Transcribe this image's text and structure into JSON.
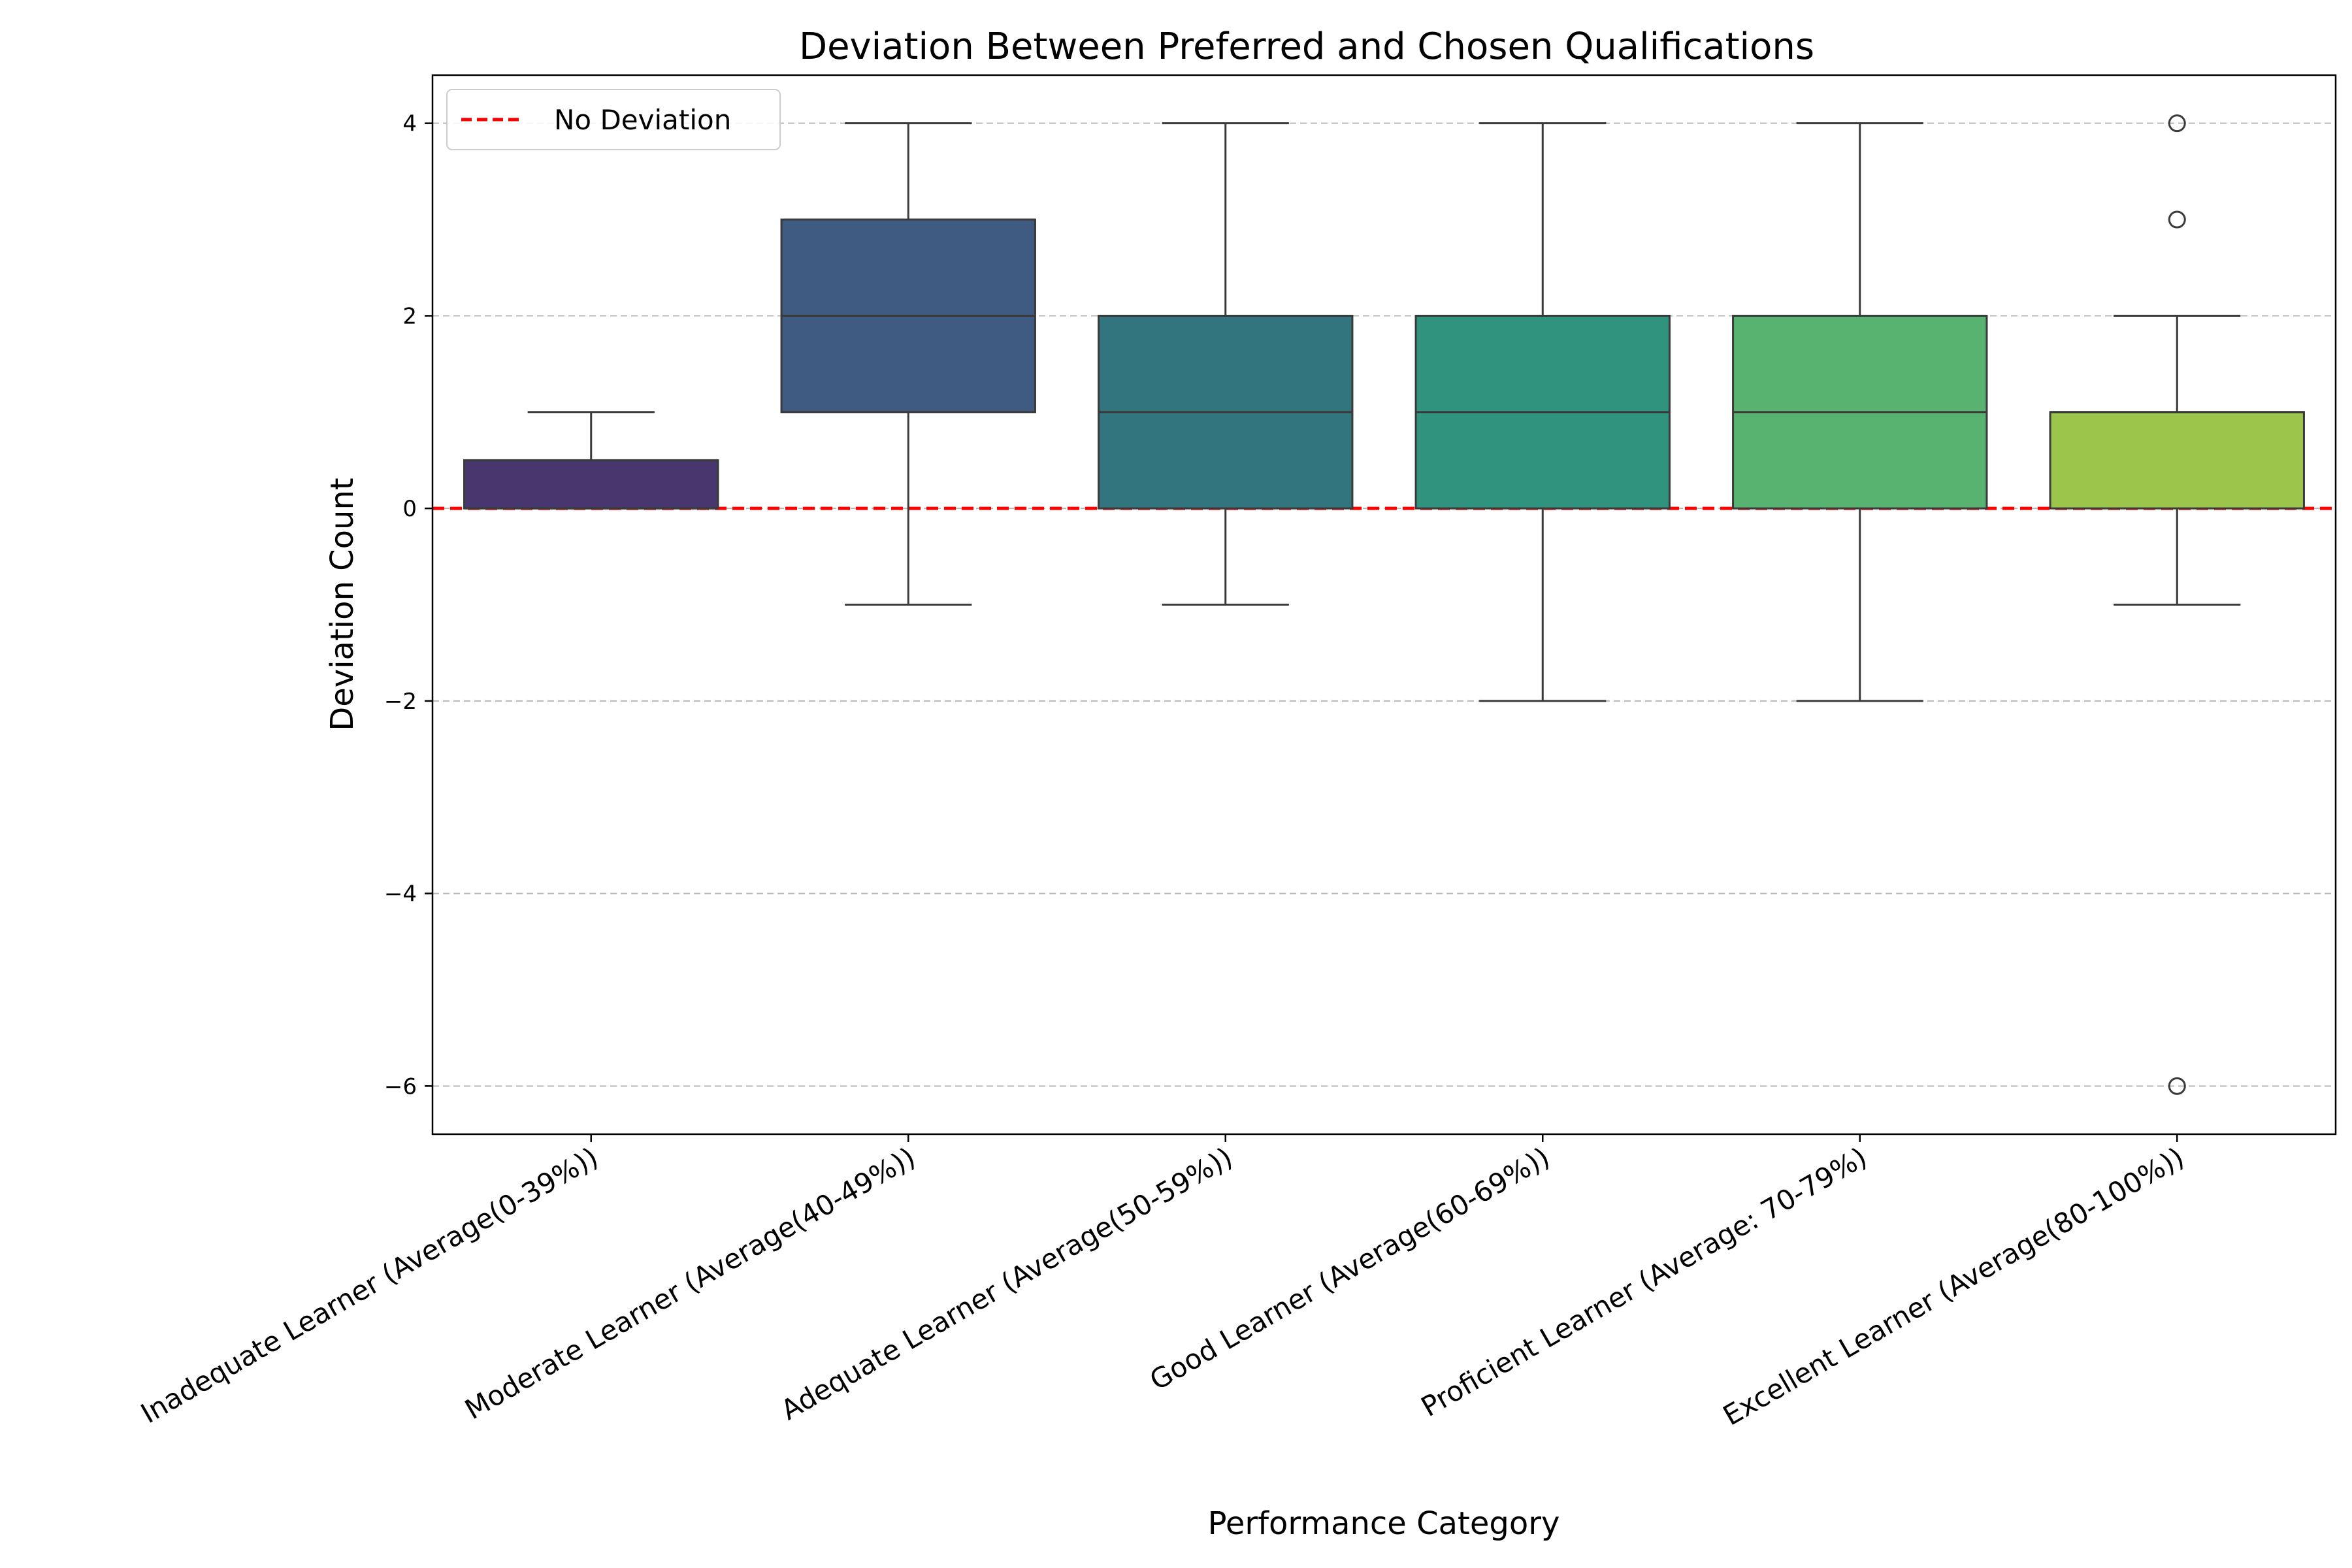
{
  "chart_data": {
    "type": "box",
    "title": "Deviation Between Preferred and Chosen Qualifications",
    "xlabel": "Performance Category",
    "ylabel": "Deviation Count",
    "ylim": [
      -6.5,
      4.5
    ],
    "yticks": [
      -6,
      -4,
      -2,
      0,
      2,
      4
    ],
    "ytick_labels": [
      "−6",
      "−4",
      "−2",
      "0",
      "2",
      "4"
    ],
    "grid": "y-dashed",
    "legend_position": "top-left",
    "reference_line": {
      "y": 0,
      "label": "No Deviation",
      "color": "#ff0000"
    },
    "categories": [
      "Inadequate Learner (Average(0-39%))",
      "Moderate Learner (Average(40-49%))",
      "Adequate Learner (Average(50-59%))",
      "Good Learner (Average(60-69%))",
      "Proficient Learner (Average: 70-79%)",
      "Excellent Learner (Average(80-100%))"
    ],
    "boxes": [
      {
        "whisker_low": 0,
        "q1": 0,
        "median": 0,
        "q3": 0.5,
        "whisker_high": 1,
        "outliers": [],
        "color": "#48376f"
      },
      {
        "whisker_low": -1,
        "q1": 1,
        "median": 2,
        "q3": 3,
        "whisker_high": 4,
        "outliers": [],
        "color": "#3f5b82"
      },
      {
        "whisker_low": -1,
        "q1": 0,
        "median": 1,
        "q3": 2,
        "whisker_high": 4,
        "outliers": [],
        "color": "#33757f"
      },
      {
        "whisker_low": -2,
        "q1": 0,
        "median": 1,
        "q3": 2,
        "whisker_high": 4,
        "outliers": [],
        "color": "#2f937d"
      },
      {
        "whisker_low": -2,
        "q1": 0,
        "median": 1,
        "q3": 2,
        "whisker_high": 4,
        "outliers": [],
        "color": "#58b270"
      },
      {
        "whisker_low": -1,
        "q1": 0,
        "median": 1,
        "q3": 1,
        "whisker_high": 2,
        "outliers": [
          4,
          3,
          -6
        ],
        "color": "#9bc54b"
      }
    ]
  }
}
